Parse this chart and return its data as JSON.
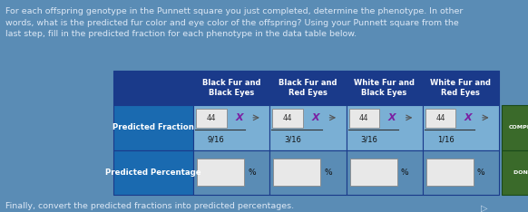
{
  "bg_color": "#5a8cb5",
  "header_text": "For each offspring genotype in the Punnett square you just completed, determine the phenotype. In other\nwords, what is the predicted fur color and eye color of the offspring? Using your Punnett square from the\nlast step, fill in the predicted fraction for each phenotype in the data table below.",
  "header_fontsize": 6.8,
  "header_color": "#dde8f5",
  "col_headers": [
    "Black Fur and\nBlack Eyes",
    "Black Fur and\nRed Eyes",
    "White Fur and\nBlack Eyes",
    "White Fur and\nRed Eyes"
  ],
  "row_labels": [
    "Predicted Fraction",
    "Predicted Percentage"
  ],
  "col_header_bg": "#1a3a8a",
  "col_header_color": "#ffffff",
  "row_label_bg": "#1a6ab0",
  "row_label_color": "#ffffff",
  "fraction_top_vals": [
    "44",
    "44",
    "44",
    "44"
  ],
  "fraction_bottom_vals": [
    "9/16",
    "3/16",
    "3/16",
    "1/16"
  ],
  "fraction_cell_bg": "#7aafd4",
  "pct_cell_bg": "#5a8cb5",
  "input_box_color": "#e8e8e8",
  "complete_btn_color": "#3a6a2a",
  "complete_btn_text": "COMPLETE",
  "done_btn_color": "#3a6a2a",
  "done_btn_text": "DONE ►",
  "footer_text": "Finally, convert the predicted fractions into predicted percentages.",
  "footer_color": "#dde8f5",
  "footer_fontsize": 6.8,
  "x_color": "#7b1fa2",
  "arrow_color": "#555555"
}
